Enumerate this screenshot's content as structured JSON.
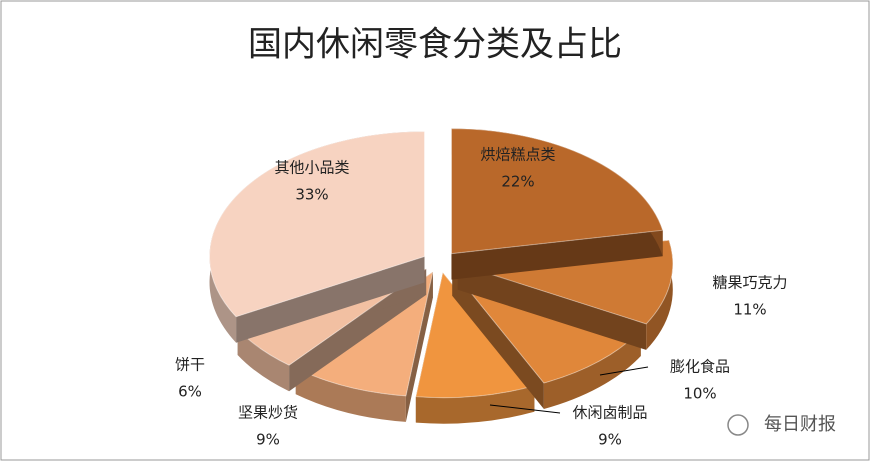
{
  "chart_data": {
    "type": "pie",
    "title": "国内休闲零食分类及占比",
    "categories": [
      "烘焙糕点类",
      "糖果巧克力",
      "膨化食品",
      "休闲卤制品",
      "坚果炒货",
      "饼干",
      "其他小品类"
    ],
    "values": [
      22,
      11,
      10,
      9,
      9,
      6,
      33
    ],
    "value_labels": [
      "22%",
      "11%",
      "10%",
      "9%",
      "9%",
      "6%",
      "33%"
    ],
    "colors": [
      "#b9682a",
      "#cf7a34",
      "#e0873a",
      "#f0953f",
      "#f4ae7c",
      "#f2c0a2",
      "#f7d3c1"
    ]
  },
  "watermark": "每日财报"
}
